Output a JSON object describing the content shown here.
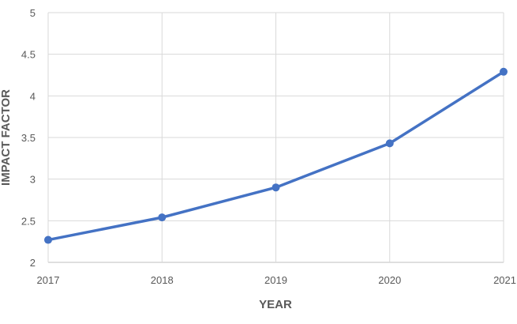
{
  "chart_data": {
    "type": "line",
    "xlabel": "YEAR",
    "ylabel": "IMPACT FACTOR",
    "x": [
      "2017",
      "2018",
      "2019",
      "2020",
      "2021"
    ],
    "series": [
      {
        "values": [
          2.27,
          2.54,
          2.9,
          3.43,
          4.29
        ],
        "color": "#4472c4"
      }
    ],
    "ylim": [
      2,
      5
    ],
    "yticks": [
      "2",
      "2.5",
      "3",
      "3.5",
      "4",
      "4.5",
      "5"
    ],
    "grid": true,
    "legend": "none"
  }
}
